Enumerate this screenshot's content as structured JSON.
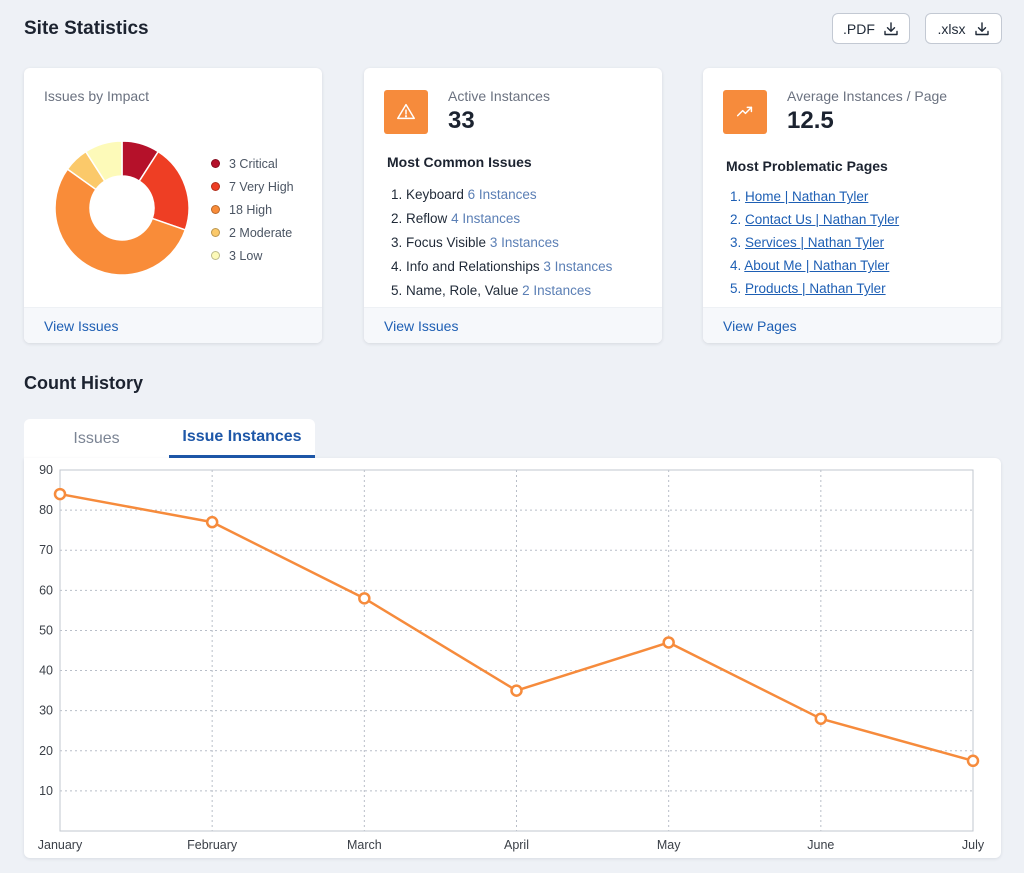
{
  "header": {
    "title": "Site Statistics",
    "export_pdf_label": ".PDF",
    "export_xlsx_label": ".xlsx"
  },
  "impact_card": {
    "title": "Issues by Impact",
    "legend": [
      {
        "label": "3 Critical",
        "value": 3,
        "color": "#b5112a"
      },
      {
        "label": "7 Very High",
        "value": 7,
        "color": "#ee3e24"
      },
      {
        "label": "18 High",
        "value": 18,
        "color": "#f98c39"
      },
      {
        "label": "2 Moderate",
        "value": 2,
        "color": "#fbc96a"
      },
      {
        "label": "3 Low",
        "value": 3,
        "color": "#fdfab9"
      }
    ],
    "footer_link": "View Issues"
  },
  "active_card": {
    "label": "Active Instances",
    "value": "33",
    "icon": "warning-triangle-icon",
    "list_title": "Most Common Issues",
    "issues": [
      {
        "num": "1.",
        "name": "Keyboard",
        "count": "6 Instances"
      },
      {
        "num": "2.",
        "name": "Reflow",
        "count": "4 Instances"
      },
      {
        "num": "3.",
        "name": "Focus Visible",
        "count": "3 Instances"
      },
      {
        "num": "4.",
        "name": "Info and Relationships",
        "count": "3 Instances"
      },
      {
        "num": "5.",
        "name": "Name, Role, Value",
        "count": "2 Instances"
      }
    ],
    "footer_link": "View Issues"
  },
  "average_card": {
    "label": "Average Instances / Page",
    "value": "12.5",
    "icon": "trending-up-icon",
    "list_title": "Most Problematic Pages",
    "pages": [
      {
        "num": "1.",
        "text": "Home | Nathan Tyler"
      },
      {
        "num": "2.",
        "text": "Contact Us | Nathan Tyler"
      },
      {
        "num": "3.",
        "text": "Services | Nathan Tyler"
      },
      {
        "num": "4.",
        "text": "About Me | Nathan Tyler"
      },
      {
        "num": "5.",
        "text": "Products | Nathan Tyler"
      }
    ],
    "footer_link": "View Pages"
  },
  "history": {
    "title": "Count History",
    "tabs": [
      {
        "label": "Issues",
        "active": false
      },
      {
        "label": "Issue Instances",
        "active": true
      }
    ]
  },
  "colors": {
    "accent": "#f68b3c",
    "link": "#1e5fb4",
    "line": "#f68b3c"
  },
  "chart_data": {
    "type": "line",
    "categories": [
      "January",
      "February",
      "March",
      "April",
      "May",
      "June",
      "July"
    ],
    "series": [
      {
        "values": [
          84,
          77,
          58,
          35,
          47,
          28,
          17.5
        ]
      }
    ],
    "ylim": [
      0,
      90
    ],
    "yticks": [
      10,
      20,
      30,
      40,
      50,
      60,
      70,
      80,
      90
    ],
    "grid": true,
    "title": "",
    "xlabel": "",
    "ylabel": ""
  }
}
